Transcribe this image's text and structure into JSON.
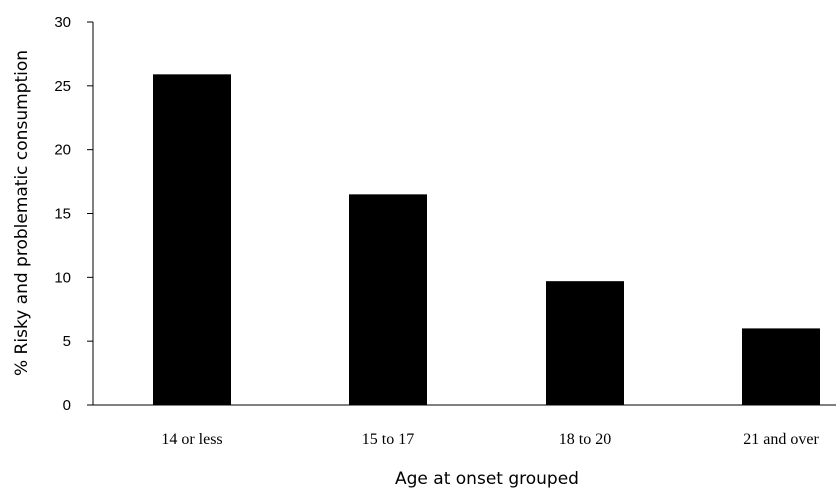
{
  "chart_data": {
    "type": "bar",
    "categories": [
      "14 or less",
      "15 to 17",
      "18 to 20",
      "21 and over"
    ],
    "values": [
      25.9,
      16.5,
      9.7,
      6.0
    ],
    "xlabel": "Age at onset grouped",
    "ylabel": "% Risky  and problematic consumption",
    "ylim": [
      0,
      30
    ],
    "yticks": [
      0,
      5,
      10,
      15,
      20,
      25,
      30
    ],
    "grid": false,
    "bar_color": "#000000"
  }
}
